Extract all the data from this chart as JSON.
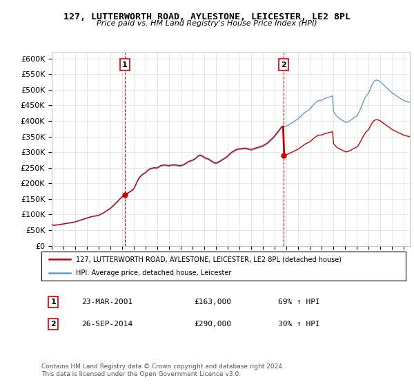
{
  "title": "127, LUTTERWORTH ROAD, AYLESTONE, LEICESTER, LE2 8PL",
  "subtitle": "Price paid vs. HM Land Registry's House Price Index (HPI)",
  "legend_line1": "127, LUTTERWORTH ROAD, AYLESTONE, LEICESTER, LE2 8PL (detached house)",
  "legend_line2": "HPI: Average price, detached house, Leicester",
  "annotation1_label": "1",
  "annotation1_date": "23-MAR-2001",
  "annotation1_price": "£163,000",
  "annotation1_hpi": "69% ↑ HPI",
  "annotation2_label": "2",
  "annotation2_date": "26-SEP-2014",
  "annotation2_price": "£290,000",
  "annotation2_hpi": "30% ↑ HPI",
  "footer": "Contains HM Land Registry data © Crown copyright and database right 2024.\nThis data is licensed under the Open Government Licence v3.0.",
  "sale1_x": 2001.23,
  "sale1_y": 163000,
  "sale2_x": 2014.75,
  "sale2_y": 290000,
  "hpi_color": "#6699cc",
  "property_color": "#cc0000",
  "vline_color": "#cc0000",
  "ylim_min": 0,
  "ylim_max": 620000,
  "xlim_min": 1995,
  "xlim_max": 2025.5,
  "yticks": [
    0,
    50000,
    100000,
    150000,
    200000,
    250000,
    300000,
    350000,
    400000,
    450000,
    500000,
    550000,
    600000
  ],
  "xticks": [
    1995,
    1996,
    1997,
    1998,
    1999,
    2000,
    2001,
    2002,
    2003,
    2004,
    2005,
    2006,
    2007,
    2008,
    2009,
    2010,
    2011,
    2012,
    2013,
    2014,
    2015,
    2016,
    2017,
    2018,
    2019,
    2020,
    2021,
    2022,
    2023,
    2024,
    2025
  ],
  "hpi_values": [
    66000,
    66500,
    65500,
    65000,
    65500,
    66000,
    66500,
    67000,
    67500,
    68000,
    68500,
    69000,
    69500,
    70000,
    70500,
    71000,
    71500,
    72000,
    72500,
    73000,
    73500,
    74000,
    74500,
    75000,
    76000,
    77000,
    78000,
    79000,
    80000,
    81000,
    82000,
    83000,
    84000,
    85000,
    86000,
    87000,
    88000,
    89000,
    90000,
    91000,
    92000,
    93000,
    93500,
    94000,
    94500,
    95000,
    95500,
    96000,
    97000,
    98500,
    100000,
    101500,
    103000,
    105000,
    107000,
    109000,
    111000,
    113000,
    115000,
    117000,
    119000,
    122000,
    125000,
    128000,
    131000,
    134000,
    137000,
    140000,
    143000,
    147000,
    150000,
    153000,
    156000,
    158000,
    160000,
    162000,
    164000,
    166000,
    168500,
    170000,
    172000,
    174000,
    176000,
    178000,
    182000,
    188000,
    195000,
    202000,
    208000,
    214000,
    218000,
    222000,
    225000,
    227000,
    229000,
    231000,
    233000,
    236000,
    239000,
    242000,
    244000,
    245000,
    246000,
    247000,
    247500,
    248000,
    247500,
    247000,
    248000,
    250000,
    252000,
    254000,
    255000,
    256000,
    256500,
    257000,
    256500,
    256000,
    255500,
    255000,
    255000,
    255500,
    256000,
    256500,
    257000,
    257000,
    257000,
    256500,
    256000,
    255500,
    255000,
    254500,
    255000,
    256000,
    257000,
    258000,
    260000,
    262000,
    264000,
    266000,
    268000,
    269000,
    270000,
    271000,
    272000,
    274000,
    276000,
    278000,
    281000,
    284000,
    287000,
    288000,
    288000,
    287000,
    285000,
    283000,
    281000,
    279000,
    278000,
    277000,
    276000,
    274000,
    272000,
    270000,
    268000,
    266000,
    264000,
    263000,
    263000,
    264000,
    265000,
    267000,
    269000,
    271000,
    273000,
    275000,
    277000,
    279000,
    281000,
    283000,
    286000,
    289000,
    292000,
    295000,
    297000,
    299000,
    301000,
    303000,
    305000,
    306000,
    307000,
    308000,
    308000,
    308500,
    309000,
    309500,
    310000,
    310000,
    310000,
    309500,
    309000,
    308000,
    307000,
    306000,
    306000,
    307000,
    308000,
    309000,
    310000,
    311000,
    312000,
    313000,
    314000,
    315000,
    316000,
    317000,
    318000,
    320000,
    322000,
    324000,
    326000,
    328000,
    331000,
    334000,
    337000,
    340000,
    343000,
    346000,
    350000,
    354000,
    358000,
    362000,
    366000,
    370000,
    374000,
    378000,
    380000,
    381000,
    382000,
    382500,
    383000,
    385000,
    387000,
    389000,
    391000,
    393000,
    395000,
    397000,
    399000,
    401000,
    403000,
    405000,
    407000,
    410000,
    413000,
    416000,
    419000,
    422000,
    425000,
    428000,
    430000,
    432000,
    434000,
    436000,
    438000,
    442000,
    446000,
    450000,
    453000,
    456000,
    459000,
    462000,
    464000,
    465000,
    466000,
    466000,
    466000,
    468000,
    470000,
    472000,
    473000,
    474000,
    475000,
    476000,
    477000,
    478000,
    479000,
    480000,
    430000,
    425000,
    420000,
    416000,
    413000,
    410000,
    408000,
    406000,
    404000,
    402000,
    400000,
    398000,
    396000,
    395000,
    396000,
    397000,
    399000,
    401000,
    403000,
    406000,
    408000,
    410000,
    412000,
    414000,
    416000,
    422000,
    428000,
    435000,
    442000,
    450000,
    458000,
    466000,
    473000,
    478000,
    482000,
    486000,
    490000,
    498000,
    506000,
    514000,
    520000,
    525000,
    528000,
    530000,
    531000,
    530000,
    529000,
    527000,
    525000,
    522000,
    519000,
    516000,
    513000,
    510000,
    507000,
    504000,
    501000,
    498000,
    495000,
    492000,
    489000,
    487000,
    485000,
    483000,
    481000,
    479000,
    477000,
    475000,
    473000,
    471000,
    469000,
    467000,
    465000,
    464000,
    463000,
    462000,
    461000,
    460000,
    459000
  ]
}
